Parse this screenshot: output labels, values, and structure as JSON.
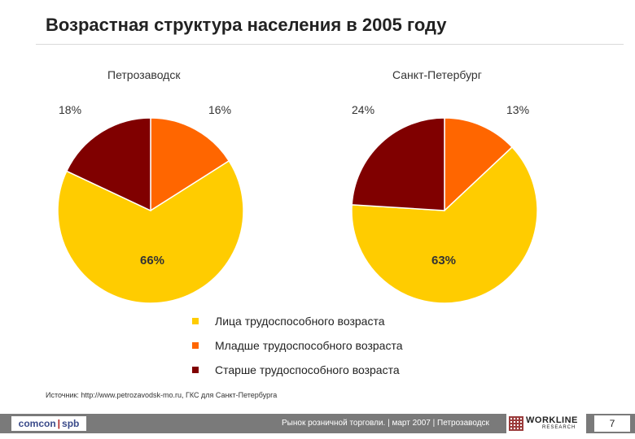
{
  "title": "Возрастная структура населения в 2005 году",
  "colors": {
    "working": "#FFCC00",
    "younger": "#FF6600",
    "older": "#800000",
    "pie_stroke": "#ffffff"
  },
  "chart_data": [
    {
      "type": "pie",
      "title": "Петрозаводск",
      "categories": [
        "Лица трудоспособного возраста",
        "Младше трудоспособного возраста",
        "Старше трудоспособного возраста"
      ],
      "values": [
        66,
        16,
        18
      ],
      "labels": [
        "66%",
        "16%",
        "18%"
      ]
    },
    {
      "type": "pie",
      "title": "Санкт-Петербург",
      "categories": [
        "Лица трудоспособного возраста",
        "Младше трудоспособного возраста",
        "Старше трудоспособного возраста"
      ],
      "values": [
        63,
        13,
        24
      ],
      "labels": [
        "63%",
        "13%",
        "24%"
      ]
    }
  ],
  "legend": [
    {
      "label": "Лица трудоспособного возраста",
      "color": "#FFCC00"
    },
    {
      "label": "Младше трудоспособного возраста",
      "color": "#FF6600"
    },
    {
      "label": "Старше трудоспособного возраста",
      "color": "#800000"
    }
  ],
  "source": "Источник: http://www.petrozavodsk-mo.ru, ГКС для Санкт-Петербурга",
  "footer": {
    "left_logo_a": "comcon",
    "left_logo_sep": "|",
    "left_logo_b": "spb",
    "text": "Рынок розничной торговли. | март 2007 | Петрозаводск",
    "right_logo_name": "WORKLINE",
    "right_logo_sub": "RESEARCH",
    "page": "7"
  }
}
